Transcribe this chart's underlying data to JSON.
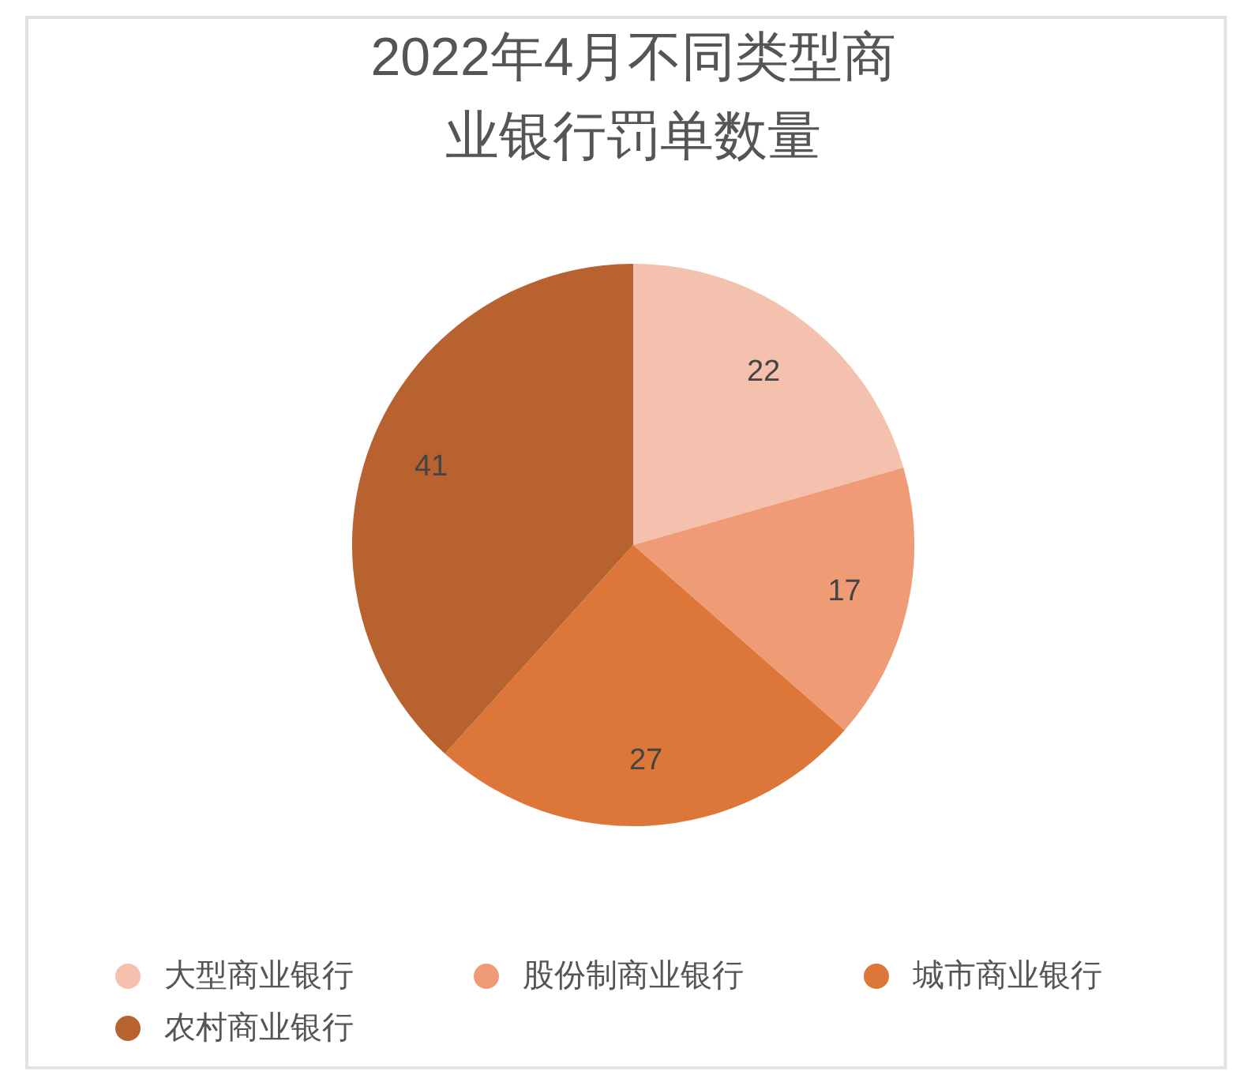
{
  "chart_data": {
    "type": "pie",
    "title": "2022年4月不同类型商业银行罚单数量",
    "categories": [
      "大型商业银行",
      "股份制商业银行",
      "城市商业银行",
      "农村商业银行"
    ],
    "values": [
      22,
      17,
      27,
      41
    ],
    "colors": [
      "#f4c1ae",
      "#ee9b76",
      "#dc7739",
      "#b7622f"
    ],
    "data_labels": true,
    "legend": "bottom"
  }
}
